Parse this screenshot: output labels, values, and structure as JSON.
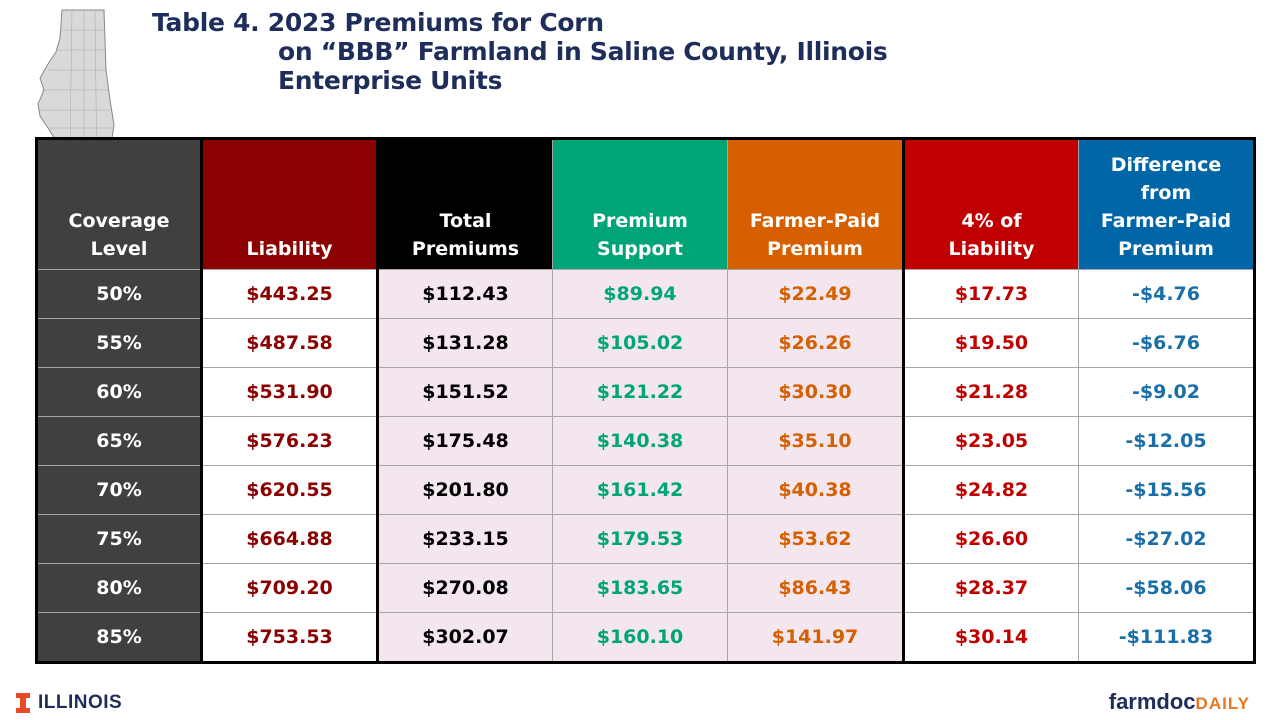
{
  "title": {
    "line1": "Table 4.  2023 Premiums for Corn",
    "line2": "on “BBB” Farmland in Saline County, Illinois",
    "line3": "Enterprise Units"
  },
  "headers": {
    "coverage": [
      "Coverage",
      "Level"
    ],
    "liability": [
      "Liability"
    ],
    "total": [
      "Total",
      "Premiums"
    ],
    "support": [
      "Premium",
      "Support"
    ],
    "farmer": [
      "Farmer-Paid",
      "Premium"
    ],
    "four": [
      "4% of",
      "Liability"
    ],
    "diff": [
      "Difference",
      "from",
      "Farmer-Paid",
      "Premium"
    ]
  },
  "rows": [
    {
      "coverage": "50%",
      "liability": "$443.25",
      "total": "$112.43",
      "support": "$89.94",
      "farmer": "$22.49",
      "four": "$17.73",
      "diff": "-$4.76"
    },
    {
      "coverage": "55%",
      "liability": "$487.58",
      "total": "$131.28",
      "support": "$105.02",
      "farmer": "$26.26",
      "four": "$19.50",
      "diff": "-$6.76"
    },
    {
      "coverage": "60%",
      "liability": "$531.90",
      "total": "$151.52",
      "support": "$121.22",
      "farmer": "$30.30",
      "four": "$21.28",
      "diff": "-$9.02"
    },
    {
      "coverage": "65%",
      "liability": "$576.23",
      "total": "$175.48",
      "support": "$140.38",
      "farmer": "$35.10",
      "four": "$23.05",
      "diff": "-$12.05"
    },
    {
      "coverage": "70%",
      "liability": "$620.55",
      "total": "$201.80",
      "support": "$161.42",
      "farmer": "$40.38",
      "four": "$24.82",
      "diff": "-$15.56"
    },
    {
      "coverage": "75%",
      "liability": "$664.88",
      "total": "$233.15",
      "support": "$179.53",
      "farmer": "$53.62",
      "four": "$26.60",
      "diff": "-$27.02"
    },
    {
      "coverage": "80%",
      "liability": "$709.20",
      "total": "$270.08",
      "support": "$183.65",
      "farmer": "$86.43",
      "four": "$28.37",
      "diff": "-$58.06"
    },
    {
      "coverage": "85%",
      "liability": "$753.53",
      "total": "$302.07",
      "support": "$160.10",
      "farmer": "$141.97",
      "four": "$30.14",
      "diff": "-$111.83"
    }
  ],
  "footer": {
    "left_logo_text": "ILLINOIS",
    "right_logo_part1": "farmdoc",
    "right_logo_part2": "DAILY"
  },
  "colors": {
    "title": "#1f2d5a",
    "coverage_bg": "#404040",
    "liability": "#8b0000",
    "total": "#000000",
    "support": "#00a577",
    "farmer": "#d65f00",
    "four_pct": "#c00000",
    "difference": "#0066a8",
    "highlight_bg": "#f3e6ef",
    "map_fill": "#d9d9d9",
    "county_highlight": "#00a0e0",
    "illinois_orange": "#e84a27"
  },
  "icons": {
    "map": "illinois-state-map-icon",
    "left_logo": "illinois-block-i-icon"
  }
}
